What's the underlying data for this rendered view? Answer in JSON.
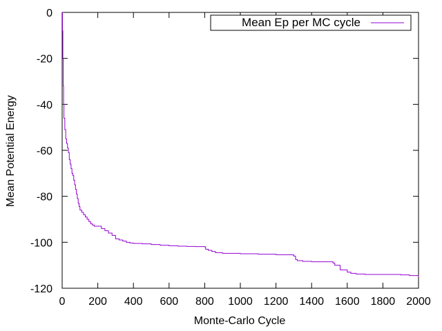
{
  "chart_data": {
    "type": "line",
    "title": "",
    "xlabel": "Monte-Carlo Cycle",
    "ylabel": "Mean Potential Energy",
    "xlim": [
      0,
      2000
    ],
    "ylim": [
      -120,
      0
    ],
    "xticks": [
      0,
      200,
      400,
      600,
      800,
      1000,
      1200,
      1400,
      1600,
      1800,
      2000
    ],
    "yticks": [
      0,
      -20,
      -40,
      -60,
      -80,
      -100,
      -120
    ],
    "xtick_labels": [
      "0",
      "200",
      "400",
      "600",
      "800",
      "1000",
      "1200",
      "1400",
      "1600",
      "1800",
      "2000"
    ],
    "ytick_labels": [
      "0",
      "-20",
      "-40",
      "-60",
      "-80",
      "-100",
      "-120"
    ],
    "grid": false,
    "legend": {
      "position": "top-right",
      "show": true
    },
    "series": [
      {
        "name": "Mean Ep per MC cycle",
        "color": "#9400d3",
        "x": [
          0,
          2,
          4,
          6,
          8,
          10,
          15,
          20,
          25,
          30,
          35,
          40,
          45,
          50,
          55,
          60,
          65,
          70,
          75,
          80,
          85,
          90,
          95,
          100,
          110,
          120,
          130,
          140,
          150,
          160,
          170,
          180,
          190,
          200,
          220,
          240,
          260,
          280,
          300,
          320,
          340,
          360,
          380,
          400,
          450,
          500,
          550,
          600,
          650,
          700,
          750,
          800,
          805,
          820,
          840,
          860,
          900,
          1000,
          1100,
          1200,
          1290,
          1300,
          1310,
          1320,
          1350,
          1400,
          1450,
          1500,
          1520,
          1530,
          1560,
          1600,
          1620,
          1650,
          1700,
          1800,
          1900,
          1950,
          2000
        ],
        "y": [
          0,
          -8,
          -20,
          -32,
          -40,
          -46,
          -51,
          -55,
          -57,
          -59,
          -61,
          -64,
          -66,
          -68,
          -70,
          -71,
          -73,
          -75,
          -77,
          -79,
          -81,
          -83,
          -84.5,
          -86,
          -87,
          -88,
          -89,
          -90,
          -91,
          -92,
          -92.5,
          -93,
          -93,
          -93,
          -94,
          -95,
          -96,
          -97,
          -98.5,
          -99,
          -99.5,
          -100,
          -100.3,
          -100.5,
          -100.7,
          -101,
          -101.3,
          -101.5,
          -101.7,
          -101.8,
          -101.9,
          -102,
          -103,
          -103.5,
          -104,
          -104.5,
          -104.8,
          -105,
          -105.2,
          -105.4,
          -105.5,
          -106,
          -107.5,
          -108,
          -108.3,
          -108.5,
          -108.5,
          -108.5,
          -109,
          -110,
          -112,
          -113,
          -113.5,
          -113.8,
          -114,
          -114,
          -114.2,
          -114.5,
          -115
        ]
      }
    ]
  }
}
